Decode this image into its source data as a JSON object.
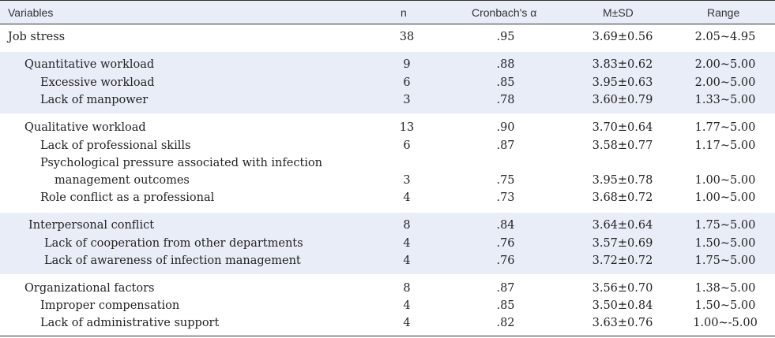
{
  "header": {
    "variables": "Variables",
    "n": "n",
    "alpha": "Cronbach's  α",
    "msd": "M±SD",
    "range": "Range"
  },
  "rows": [
    {
      "label": "Job stress",
      "n": "38",
      "alpha": ".95",
      "msd": "3.69±0.56",
      "range": "2.05~4.95"
    },
    {
      "label": "Quantitative workload",
      "n": "9",
      "alpha": ".88",
      "msd": "3.83±0.62",
      "range": "2.00~5.00"
    },
    {
      "label": "Excessive workload",
      "n": "6",
      "alpha": ".85",
      "msd": "3.95±0.63",
      "range": "2.00~5.00"
    },
    {
      "label": "Lack of manpower",
      "n": "3",
      "alpha": ".78",
      "msd": "3.60±0.79",
      "range": "1.33~5.00"
    },
    {
      "label": "Qualitative workload",
      "n": "13",
      "alpha": ".90",
      "msd": "3.70±0.64",
      "range": "1.77~5.00"
    },
    {
      "label": "Lack of professional skills",
      "n": "6",
      "alpha": ".87",
      "msd": "3.58±0.77",
      "range": "1.17~5.00"
    },
    {
      "label": "Psychological pressure associated with infection",
      "n": "",
      "alpha": "",
      "msd": "",
      "range": ""
    },
    {
      "label": "management outcomes",
      "n": "3",
      "alpha": ".75",
      "msd": "3.95±0.78",
      "range": "1.00~5.00"
    },
    {
      "label": "Role conflict as a professional",
      "n": "4",
      "alpha": ".73",
      "msd": "3.68±0.72",
      "range": "1.00~5.00"
    },
    {
      "label": "Interpersonal conflict",
      "n": "8",
      "alpha": ".84",
      "msd": "3.64±0.64",
      "range": "1.75~5.00"
    },
    {
      "label": "Lack of cooperation from other departments",
      "n": "4",
      "alpha": ".76",
      "msd": "3.57±0.69",
      "range": "1.50~5.00"
    },
    {
      "label": "Lack of awareness of infection management",
      "n": "4",
      "alpha": ".76",
      "msd": "3.72±0.72",
      "range": "1.75~5.00"
    },
    {
      "label": "Organizational factors",
      "n": "8",
      "alpha": ".87",
      "msd": "3.56±0.70",
      "range": "1.38~5.00"
    },
    {
      "label": "Improper compensation",
      "n": "4",
      "alpha": ".85",
      "msd": "3.50±0.84",
      "range": "1.50~5.00"
    },
    {
      "label": "Lack of administrative support",
      "n": "4",
      "alpha": ".82",
      "msd": "3.63±0.76",
      "range": "1.00~-5.00"
    }
  ]
}
